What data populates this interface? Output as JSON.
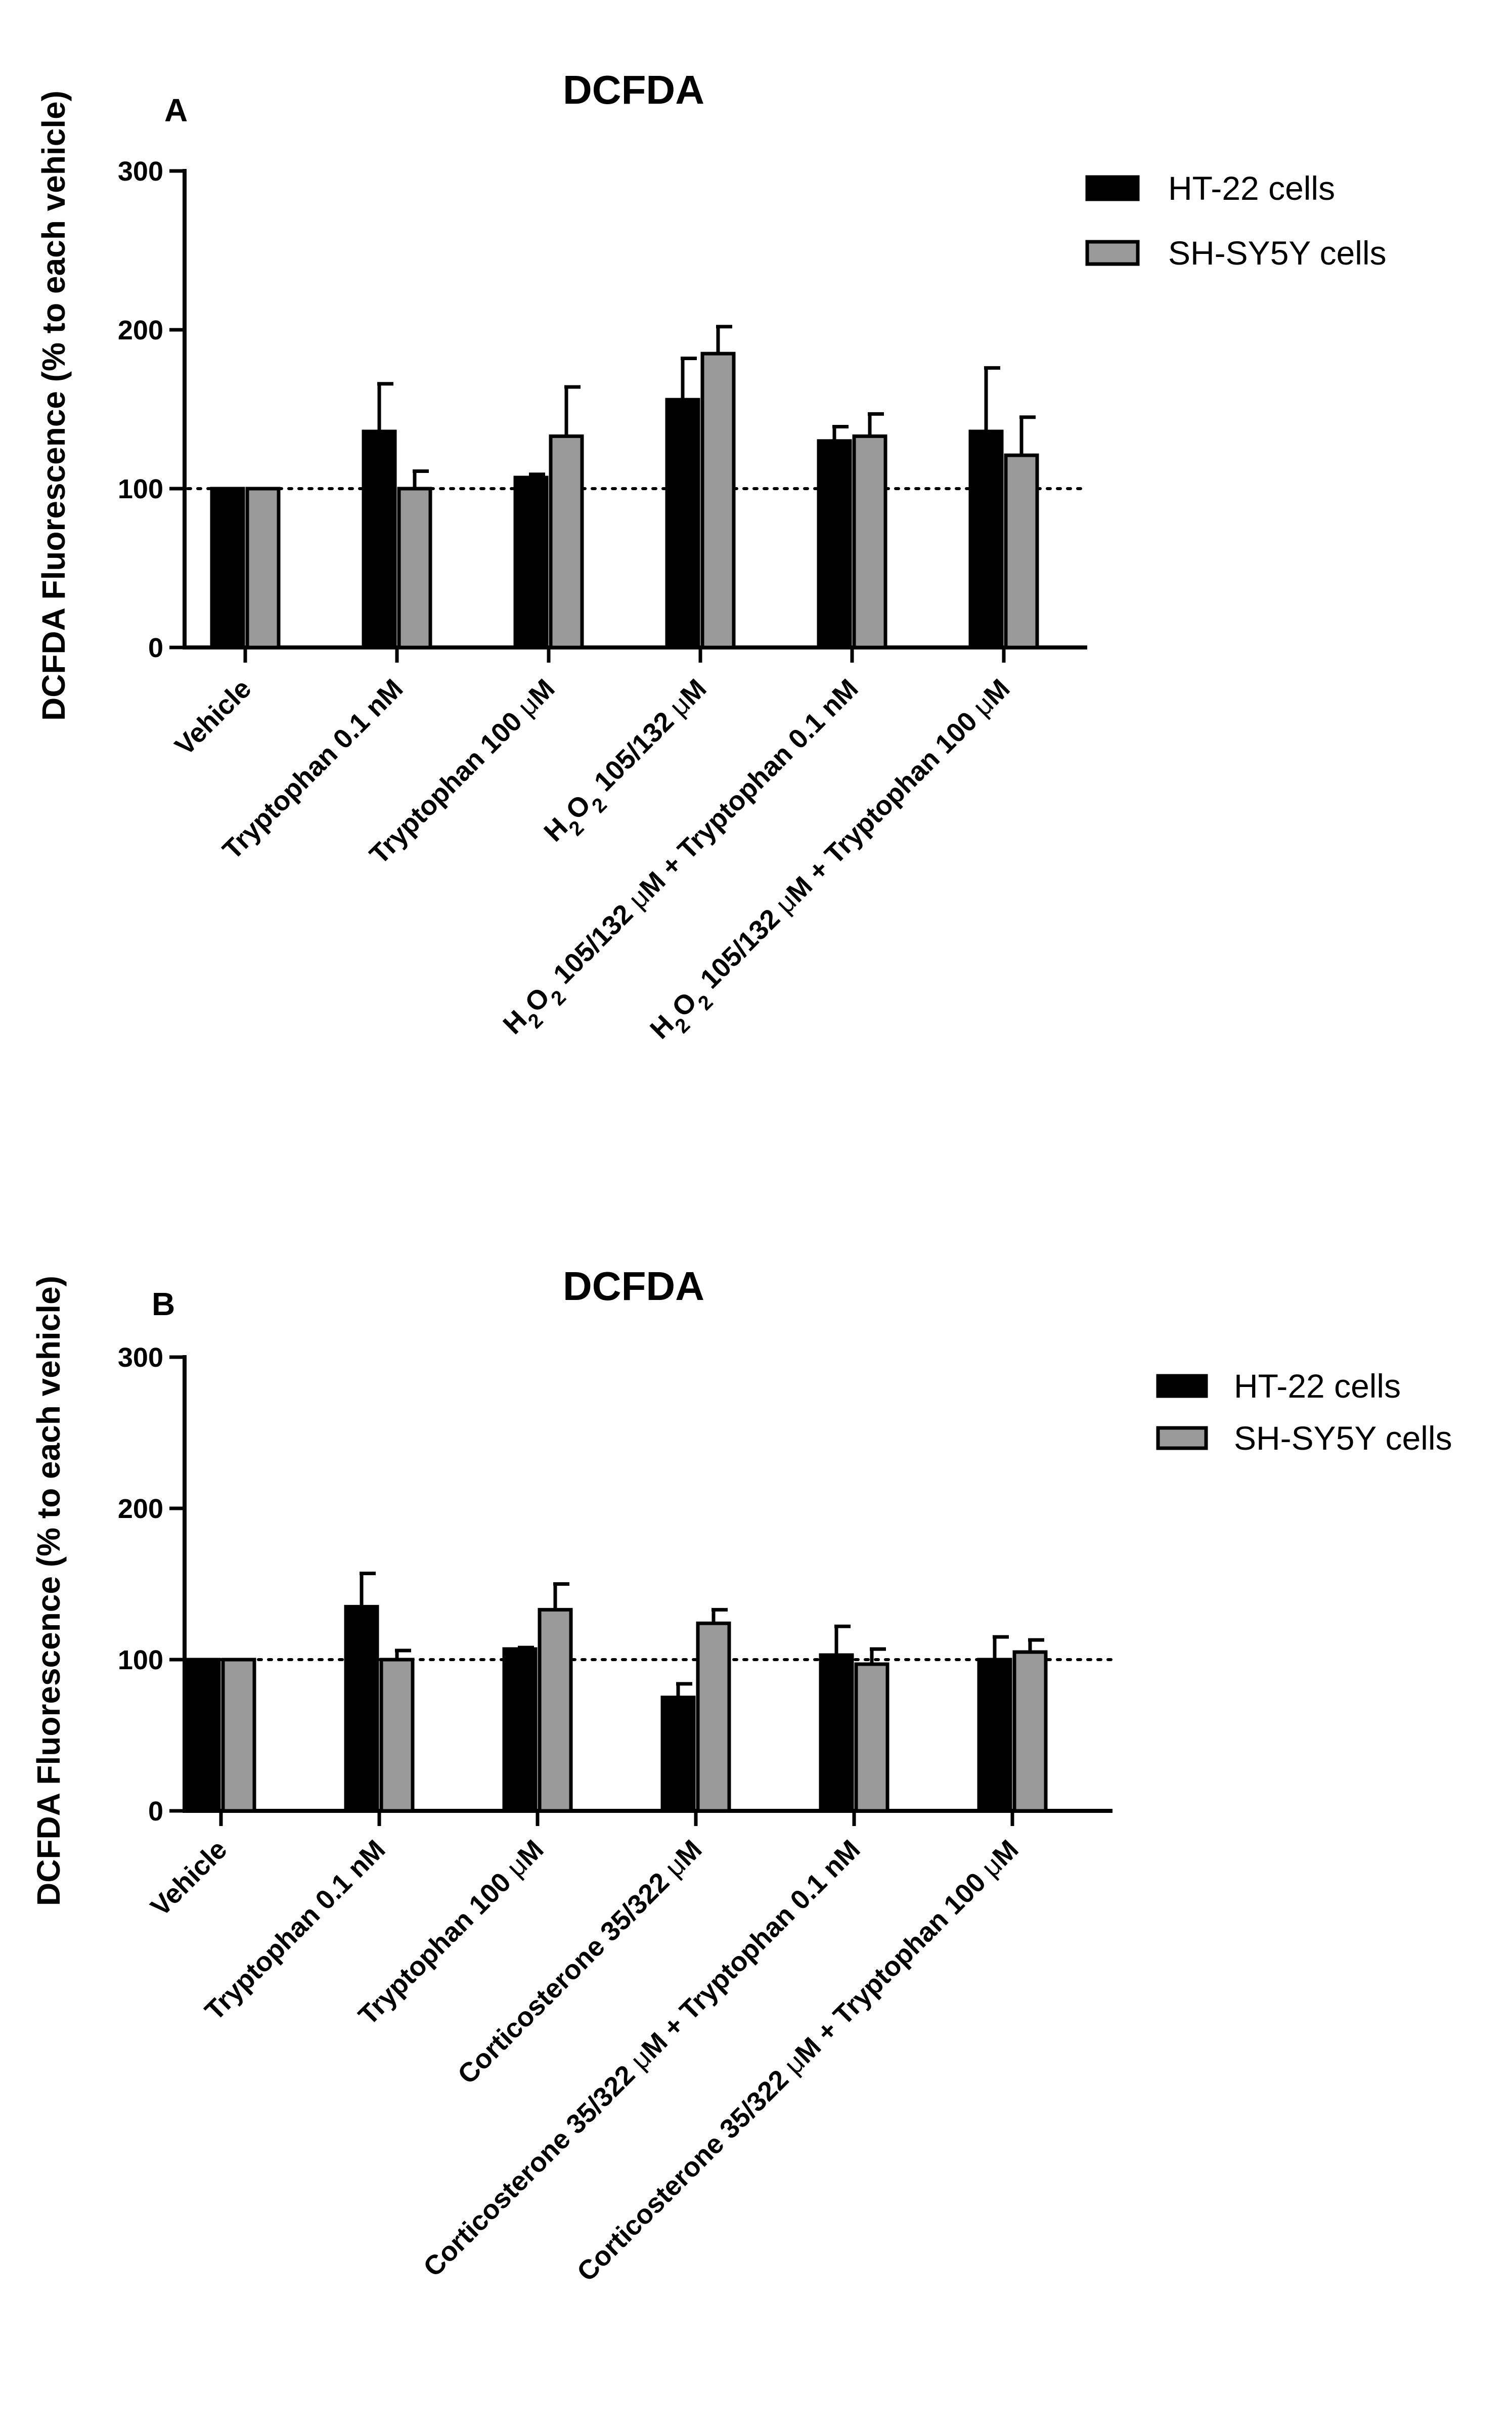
{
  "chart_data": [
    {
      "type": "bar",
      "panel": "A",
      "title": "DCFDA",
      "xlabel": "",
      "ylabel": "DCFDA  Fluorescence (% to each vehicle)",
      "ylim": [
        0,
        300
      ],
      "yticks": [
        0,
        100,
        200,
        300
      ],
      "reference_line": 100,
      "legend_position": "top-right",
      "categories": [
        [
          "Vehicle"
        ],
        [
          "Tryptophan 0.1 nM"
        ],
        [
          "Tryptophan 100 ",
          "μ",
          "M"
        ],
        [
          "H",
          "2",
          "O",
          "2",
          " 105/132 ",
          "μ",
          "M"
        ],
        [
          "H",
          "2",
          "O",
          "2",
          " 105/132 ",
          "μ",
          "M + Tryptophan 0.1 nM"
        ],
        [
          "H",
          "2",
          "O",
          "2",
          " 105/132 ",
          "μ",
          "M + Tryptophan 100 ",
          "μ",
          "M"
        ]
      ],
      "series": [
        {
          "name": "HT-22 cells",
          "color": "#000000",
          "values": [
            100,
            136,
            107,
            156,
            130,
            136
          ],
          "errors": [
            0,
            30,
            2,
            26,
            9,
            40
          ]
        },
        {
          "name": "SH-SY5Y cells",
          "color": "#9a9a9a",
          "values": [
            100,
            100,
            133,
            185,
            133,
            121
          ],
          "errors": [
            0,
            11,
            31,
            17,
            14,
            24
          ]
        }
      ]
    },
    {
      "type": "bar",
      "panel": "B",
      "title": "DCFDA",
      "xlabel": "",
      "ylabel": "DCFDA  Fluorescence (% to each vehicle)",
      "ylim": [
        0,
        300
      ],
      "yticks": [
        0,
        100,
        200,
        300
      ],
      "reference_line": 100,
      "legend_position": "top-right",
      "categories": [
        [
          "Vehicle"
        ],
        [
          "Tryptophan 0.1 nM"
        ],
        [
          "Tryptophan 100 ",
          "μ",
          "M"
        ],
        [
          "Corticosterone 35/322 ",
          "μ",
          "M"
        ],
        [
          "Corticosterone 35/322 ",
          "μ",
          "M + Tryptophan 0.1 nM"
        ],
        [
          "Corticosterone 35/322 ",
          "μ",
          "M + Tryptophan 100 ",
          "μ",
          "M"
        ]
      ],
      "series": [
        {
          "name": "HT-22 cells",
          "color": "#000000",
          "values": [
            100,
            135,
            107,
            75,
            103,
            100
          ],
          "errors": [
            0,
            22,
            1,
            9,
            19,
            15
          ]
        },
        {
          "name": "SH-SY5Y cells",
          "color": "#9a9a9a",
          "values": [
            100,
            100,
            133,
            124,
            97,
            105
          ],
          "errors": [
            0,
            6,
            17,
            9,
            10,
            8
          ]
        }
      ]
    }
  ]
}
